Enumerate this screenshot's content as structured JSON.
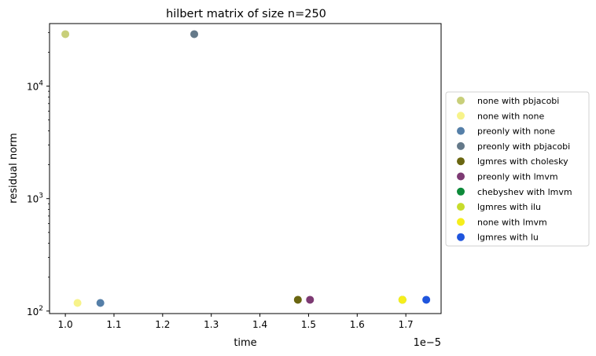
{
  "chart_data": {
    "type": "scatter",
    "title": "hilbert matrix of size n=250",
    "xlabel": "time",
    "ylabel": "residual norm",
    "x_offset_label": "1e−5",
    "x_scale": 1e-05,
    "xlim": [
      0.9675,
      1.7725
    ],
    "ylim": [
      95,
      36000
    ],
    "y_scale": "log",
    "x_ticks": [
      {
        "value": 1.0,
        "label": "1.0"
      },
      {
        "value": 1.1,
        "label": "1.1"
      },
      {
        "value": 1.2,
        "label": "1.2"
      },
      {
        "value": 1.3,
        "label": "1.3"
      },
      {
        "value": 1.4,
        "label": "1.4"
      },
      {
        "value": 1.5,
        "label": "1.5"
      },
      {
        "value": 1.6,
        "label": "1.6"
      },
      {
        "value": 1.7,
        "label": "1.7"
      }
    ],
    "y_ticks": [
      {
        "value": 100,
        "base": "10",
        "exp": "2"
      },
      {
        "value": 1000,
        "base": "10",
        "exp": "3"
      },
      {
        "value": 10000,
        "base": "10",
        "exp": "4"
      }
    ],
    "grid": false,
    "legend_position": "outside-right",
    "series": [
      {
        "name": "none with pbjacobi",
        "color": "#c8cf7a",
        "points": [
          [
            1.0,
            29000
          ]
        ]
      },
      {
        "name": "none with none",
        "color": "#f7f38a",
        "points": [
          [
            1.025,
            118
          ]
        ]
      },
      {
        "name": "preonly with none",
        "color": "#557fa8",
        "points": [
          [
            1.072,
            118
          ]
        ]
      },
      {
        "name": "preonly with pbjacobi",
        "color": "#647989",
        "points": [
          [
            1.265,
            29000
          ]
        ]
      },
      {
        "name": "lgmres with cholesky",
        "color": "#6a6611",
        "points": [
          [
            1.478,
            126
          ]
        ]
      },
      {
        "name": "preonly with lmvm",
        "color": "#7d3a73",
        "points": [
          [
            1.503,
            126
          ]
        ]
      },
      {
        "name": "chebyshev with lmvm",
        "color": "#0d8a3a",
        "points": [
          [
            1.693,
            126
          ]
        ]
      },
      {
        "name": "lgmres with ilu",
        "color": "#c7dc2c",
        "points": [
          [
            1.693,
            126
          ]
        ]
      },
      {
        "name": "none with lmvm",
        "color": "#f6ee1c",
        "points": [
          [
            1.693,
            126
          ]
        ]
      },
      {
        "name": "lgmres with lu",
        "color": "#1f55dd",
        "points": [
          [
            1.742,
            126
          ]
        ]
      }
    ]
  }
}
